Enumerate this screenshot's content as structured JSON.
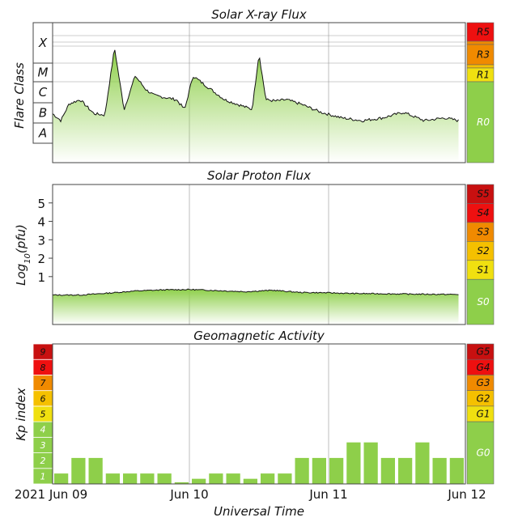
{
  "page": {
    "x_axis_label": "Universal Time",
    "x_ticks": [
      "2021 Jun 09",
      "Jun 10",
      "Jun 11",
      "Jun 12"
    ]
  },
  "colors": {
    "green": "#8ecf4a",
    "yellow": "#f0e010",
    "gold": "#f5c000",
    "orange": "#f08a00",
    "red": "#ee1010",
    "darkred": "#c81010",
    "trace": "#111111"
  },
  "chart_data": [
    {
      "id": "xray",
      "type": "area",
      "title": "Solar X-ray Flux",
      "ylabel": "Flare Class",
      "y_classes": [
        "X",
        "M",
        "C",
        "B",
        "A"
      ],
      "x_range_days": [
        0,
        3
      ],
      "x": [
        0.0,
        0.06,
        0.12,
        0.2,
        0.3,
        0.38,
        0.45,
        0.5,
        0.52,
        0.6,
        0.68,
        0.74,
        0.9,
        0.96,
        1.02,
        1.1,
        1.25,
        1.45,
        1.5,
        1.55,
        1.62,
        1.7,
        1.8,
        1.95,
        2.1,
        2.25,
        2.4,
        2.55,
        2.7,
        2.85,
        2.95
      ],
      "y": [
        0.35,
        0.3,
        0.42,
        0.45,
        0.35,
        0.34,
        0.82,
        0.5,
        0.38,
        0.62,
        0.52,
        0.48,
        0.45,
        0.38,
        0.62,
        0.56,
        0.45,
        0.38,
        0.78,
        0.45,
        0.44,
        0.45,
        0.42,
        0.36,
        0.32,
        0.3,
        0.32,
        0.36,
        0.3,
        0.32,
        0.3
      ],
      "scale_levels": [
        {
          "label": "R5",
          "color": "red"
        },
        {
          "label": "",
          "color": "orange"
        },
        {
          "label": "R3",
          "color": "orange"
        },
        {
          "label": "",
          "color": "gold"
        },
        {
          "label": "R1",
          "color": "yellow"
        },
        {
          "label": "R0",
          "color": "green"
        }
      ]
    },
    {
      "id": "proton",
      "type": "area",
      "title": "Solar Proton Flux",
      "ylabel": "Log10(pfu)",
      "ylabel_main": "Log",
      "ylabel_sub": "10",
      "ylabel_tail": "(pfu)",
      "y_ticks": [
        "1",
        "2",
        "3",
        "4",
        "5"
      ],
      "ylim": [
        -1.6,
        6
      ],
      "x_range_days": [
        0,
        3
      ],
      "x": [
        0.0,
        0.2,
        0.4,
        0.6,
        0.8,
        1.0,
        1.2,
        1.4,
        1.6,
        1.8,
        2.0,
        2.2,
        2.4,
        2.6,
        2.8,
        2.95
      ],
      "y": [
        0.0,
        0.0,
        0.1,
        0.22,
        0.28,
        0.3,
        0.24,
        0.18,
        0.26,
        0.14,
        0.12,
        0.08,
        0.07,
        0.05,
        0.04,
        0.03
      ],
      "scale_levels": [
        {
          "label": "S5",
          "color": "darkred"
        },
        {
          "label": "S4",
          "color": "red"
        },
        {
          "label": "S3",
          "color": "orange"
        },
        {
          "label": "S2",
          "color": "gold"
        },
        {
          "label": "S1",
          "color": "yellow"
        },
        {
          "label": "S0",
          "color": "green"
        }
      ]
    },
    {
      "id": "kp",
      "type": "bar",
      "title": "Geomagnetic Activity",
      "ylabel": "Kp index",
      "ylim": [
        0,
        9
      ],
      "bar_width_days": 0.125,
      "values": [
        0.67,
        1.67,
        1.67,
        0.67,
        0.67,
        0.67,
        0.67,
        0,
        0.33,
        0.67,
        0.67,
        0.33,
        0.67,
        0.67,
        1.67,
        1.67,
        1.67,
        2.67,
        2.67,
        1.67,
        1.67,
        2.67,
        1.67,
        1.67
      ],
      "kp_levels": [
        {
          "label": "1",
          "color": "green"
        },
        {
          "label": "2",
          "color": "green"
        },
        {
          "label": "3",
          "color": "green"
        },
        {
          "label": "4",
          "color": "green"
        },
        {
          "label": "5",
          "color": "yellow"
        },
        {
          "label": "6",
          "color": "gold"
        },
        {
          "label": "7",
          "color": "orange"
        },
        {
          "label": "8",
          "color": "red"
        },
        {
          "label": "9",
          "color": "darkred"
        }
      ],
      "scale_levels": [
        {
          "label": "G5",
          "color": "darkred"
        },
        {
          "label": "G4",
          "color": "red"
        },
        {
          "label": "G3",
          "color": "orange"
        },
        {
          "label": "G2",
          "color": "gold"
        },
        {
          "label": "G1",
          "color": "yellow"
        },
        {
          "label": "G0",
          "color": "green"
        }
      ]
    }
  ]
}
